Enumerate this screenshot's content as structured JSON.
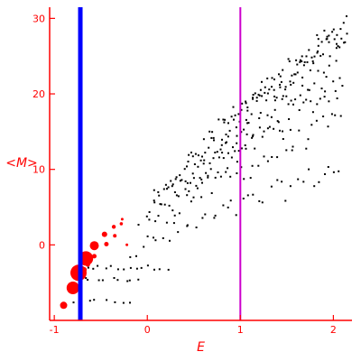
{
  "chart_data": {
    "type": "scatter",
    "title": "",
    "xlabel": "E",
    "ylabel": "<M>",
    "xlim": [
      -1.05,
      2.2
    ],
    "ylim": [
      -10,
      31
    ],
    "xticks": [
      -1,
      0,
      1,
      2
    ],
    "yticks": [
      0,
      10,
      20,
      30
    ],
    "xtick_labels": [
      "-1",
      "0",
      "1",
      "2"
    ],
    "ytick_labels": [
      "0",
      "10",
      "20",
      "30"
    ],
    "grid": false,
    "legend": "none",
    "colors": {
      "axes": "#ff0000",
      "points": "#000000",
      "highlight": "#ff0000",
      "vline_left": "#0000ff",
      "vline_right": "#cc00cc"
    },
    "vlines": [
      {
        "x": -0.72,
        "color": "#0000ff"
      },
      {
        "x": 1.0,
        "color": "#cc00cc"
      }
    ],
    "highlight_points": [
      {
        "x": -0.9,
        "y": -8.0,
        "size": 4
      },
      {
        "x": -0.8,
        "y": -5.7,
        "size": 7
      },
      {
        "x": -0.74,
        "y": -3.7,
        "size": 9
      },
      {
        "x": -0.66,
        "y": -1.8,
        "size": 8
      },
      {
        "x": -0.68,
        "y": -3.3,
        "size": 3
      },
      {
        "x": -0.64,
        "y": -2.6,
        "size": 2.5
      },
      {
        "x": -0.57,
        "y": -0.1,
        "size": 5
      },
      {
        "x": -0.57,
        "y": -1.5,
        "size": 2.5
      },
      {
        "x": -0.46,
        "y": 1.4,
        "size": 3
      },
      {
        "x": -0.44,
        "y": 0.1,
        "size": 2.5
      },
      {
        "x": -0.36,
        "y": 2.4,
        "size": 2.2
      },
      {
        "x": -0.35,
        "y": 1.2,
        "size": 2
      },
      {
        "x": -0.28,
        "y": 2.8,
        "size": 1.8
      },
      {
        "x": -0.27,
        "y": 3.4,
        "size": 1.5
      },
      {
        "x": -0.22,
        "y": 0.0,
        "size": 1.5
      }
    ]
  }
}
